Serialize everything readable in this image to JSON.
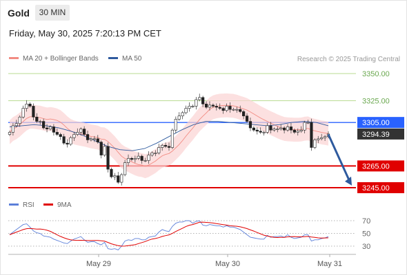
{
  "header": {
    "title": "Gold",
    "timeframe": "30 MIN",
    "datetime": "Friday, May 30, 2025 7:20:13 PM CET"
  },
  "legend": {
    "main": [
      {
        "label": "MA 20 + Bollinger Bands",
        "color": "#f28b82"
      },
      {
        "label": "MA 50",
        "color": "#2e5a9e"
      }
    ],
    "rsi": [
      {
        "label": "RSI",
        "color": "#5b7fd9"
      },
      {
        "label": "9MA",
        "color": "#e00000"
      }
    ],
    "credit": "Research © 2025 Trading Central"
  },
  "chart_data": {
    "type": "candlestick",
    "price_axis": {
      "ylim": [
        3232,
        3362
      ],
      "ticks": [
        "3350.00",
        "3325.00",
        "3305.00",
        "3294.39",
        "3265.00",
        "3245.00"
      ]
    },
    "x_ticks": [
      "May 29",
      "May 30",
      "May 31"
    ],
    "levels": {
      "resistance": [
        {
          "price": 3350.0,
          "label": "3350.00",
          "color": "#8bc34a"
        },
        {
          "price": 3325.0,
          "label": "3325.00",
          "color": "#8bc34a"
        }
      ],
      "pivot": {
        "price": 3305.0,
        "label": "3305.00",
        "color": "#2962ff"
      },
      "last": {
        "price": 3294.39,
        "label": "3294.39",
        "color": "#333333"
      },
      "support": [
        {
          "price": 3265.0,
          "label": "3265.00",
          "color": "#e00000"
        },
        {
          "price": 3245.0,
          "label": "3245.00",
          "color": "#e00000"
        }
      ]
    },
    "forecast_arrow": {
      "from": 3294,
      "to": 3247,
      "color": "#2e5a9e"
    },
    "close": [
      3296,
      3302,
      3304,
      3310,
      3318,
      3322,
      3320,
      3310,
      3306,
      3306,
      3300,
      3299,
      3301,
      3296,
      3294,
      3292,
      3286,
      3285,
      3291,
      3294,
      3296,
      3299,
      3294,
      3289,
      3290,
      3290,
      3287,
      3275,
      3283,
      3262,
      3255,
      3256,
      3250,
      3257,
      3268,
      3272,
      3271,
      3272,
      3274,
      3270,
      3270,
      3275,
      3277,
      3277,
      3282,
      3284,
      3283,
      3282,
      3298,
      3308,
      3311,
      3314,
      3318,
      3320,
      3320,
      3326,
      3328,
      3322,
      3319,
      3321,
      3320,
      3319,
      3318,
      3316,
      3320,
      3317,
      3317,
      3317,
      3315,
      3311,
      3306,
      3300,
      3298,
      3297,
      3296,
      3296,
      3302,
      3298,
      3299,
      3299,
      3300,
      3298,
      3301,
      3298,
      3296,
      3297,
      3298,
      3305,
      3305,
      3282,
      3289,
      3290,
      3291,
      3292,
      3294.39
    ],
    "bands": {
      "mid_start": 3302,
      "mid_end": 3298,
      "half_width": 11
    },
    "ma50": [
      3301,
      3302,
      3303,
      3302,
      3300,
      3297,
      3293,
      3288,
      3283,
      3280,
      3279,
      3281,
      3286,
      3292,
      3298,
      3303,
      3306,
      3306,
      3305,
      3304,
      3303,
      3302,
      3303,
      3305,
      3306,
      3305,
      3302
    ],
    "rsi": {
      "ylim": [
        20,
        80
      ],
      "ticks": [
        70,
        50,
        30
      ],
      "values": [
        48,
        52,
        56,
        60,
        64,
        65,
        60,
        54,
        51,
        50,
        46,
        45,
        44,
        41,
        39,
        37,
        35,
        34,
        38,
        41,
        43,
        45,
        40,
        36,
        37,
        37,
        34,
        32,
        36,
        26,
        25,
        26,
        24,
        30,
        38,
        40,
        39,
        42,
        42,
        40,
        40,
        44,
        45,
        46,
        52,
        56,
        54,
        53,
        61,
        66,
        68,
        68,
        70,
        70,
        66,
        69,
        70,
        63,
        62,
        64,
        63,
        62,
        62,
        60,
        62,
        60,
        60,
        58,
        56,
        52,
        48,
        44,
        43,
        42,
        41,
        41,
        47,
        44,
        45,
        45,
        46,
        44,
        48,
        44,
        42,
        43,
        44,
        48,
        48,
        38,
        40,
        40,
        42,
        43,
        45
      ],
      "ma9_start": 47,
      "ma9_end": 45
    }
  }
}
